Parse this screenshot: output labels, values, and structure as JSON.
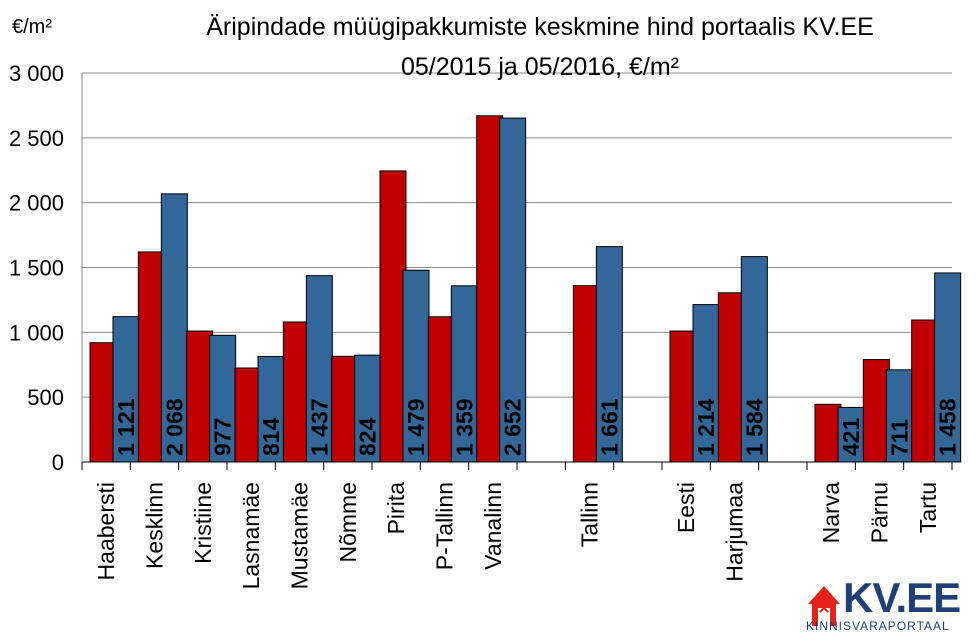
{
  "chart_data": {
    "type": "bar",
    "title_line1": "Äripindade müügipakkumiste keskmine hind portaalis KV.EE",
    "title_line2": "05/2015 ja 05/2016, €/m²",
    "ylabel": "€/m²",
    "ylim": [
      0,
      3000
    ],
    "yticks": [
      "0",
      "500",
      "1 000",
      "1 500",
      "2 000",
      "2 500",
      "3 000"
    ],
    "ytick_values": [
      0,
      500,
      1000,
      1500,
      2000,
      2500,
      3000
    ],
    "grid": true,
    "categories": [
      "Haabersti",
      "Kesklinn",
      "Kristiine",
      "Lasnamäe",
      "Mustamäe",
      "Nõmme",
      "Pirita",
      "P-Tallinn",
      "Vanalinn",
      "",
      "Tallinn",
      "",
      "Eesti",
      "Harjumaa",
      "",
      "Narva",
      "Pärnu",
      "Tartu"
    ],
    "series": [
      {
        "color": "#c00000",
        "values": [
          920,
          1620,
          1010,
          725,
          1080,
          815,
          2245,
          1120,
          2670,
          null,
          1360,
          null,
          1010,
          1305,
          null,
          445,
          790,
          1095
        ]
      },
      {
        "color": "#336699",
        "values": [
          1121,
          2068,
          977,
          814,
          1437,
          824,
          1479,
          1359,
          2652,
          null,
          1661,
          null,
          1214,
          1584,
          null,
          421,
          711,
          1458
        ],
        "labels": [
          "1 121",
          "2 068",
          "977",
          "814",
          "1 437",
          "824",
          "1 479",
          "1 359",
          "2 652",
          "",
          "1 661",
          "",
          "1 214",
          "1 584",
          "",
          "421",
          "711",
          "1 458"
        ]
      }
    ]
  },
  "logo": {
    "name": "KV.EE",
    "tagline": "KINNISVARAPORTAAL",
    "colors": {
      "red": "#e2231a",
      "blue": "#1f3f77"
    }
  }
}
